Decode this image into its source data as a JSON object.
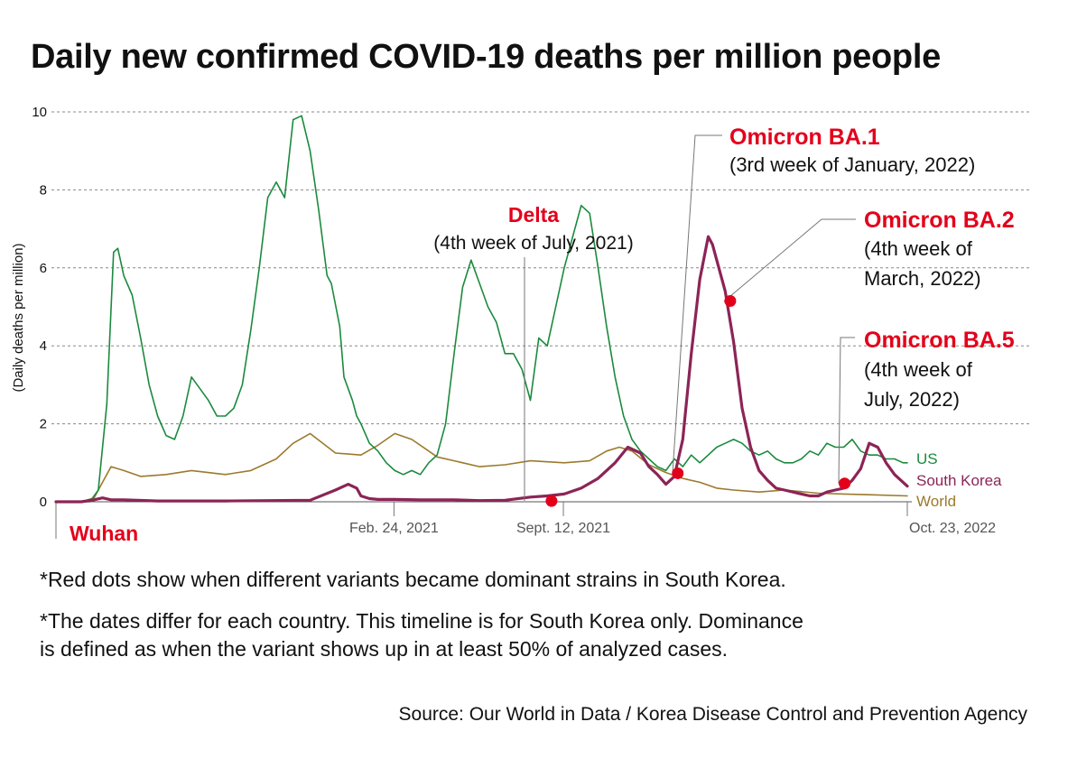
{
  "title": "Daily new confirmed COVID-19 deaths per million people",
  "notes": [
    "*Red dots show when different variants became dominant strains in South Korea.",
    "*The dates differ for each country. This timeline is for South Korea only. Dominance",
    "is defined as when the variant shows up in at least 50% of analyzed cases."
  ],
  "source": "Source: Our World in Data / Korea Disease Control and Prevention Agency",
  "colors": {
    "us": "#1b8a3e",
    "south_korea": "#8c2456",
    "world": "#9c7a2c",
    "marker": "#e3001b",
    "grid": "#888888"
  },
  "chart_data": {
    "type": "line",
    "title": "Daily new confirmed COVID-19 deaths per million people",
    "ylabel": "(Daily deaths per million)",
    "xlabel": "",
    "ylim": [
      0,
      10
    ],
    "yticks": [
      "0",
      "2",
      "4",
      "6",
      "8",
      "10"
    ],
    "xlim": [
      -20,
      1000
    ],
    "x_unit": "days since Jan. 22, 2020",
    "xticks": [
      {
        "x": 0,
        "label": "Wuhan"
      },
      {
        "x": 399,
        "label": "Feb. 24, 2021"
      },
      {
        "x": 599,
        "label": "Sept. 12, 2021"
      },
      {
        "x": 1005,
        "label": "Oct. 23, 2022"
      }
    ],
    "legend": [
      {
        "key": "us",
        "label": "US"
      },
      {
        "key": "south_korea",
        "label": "South Korea"
      },
      {
        "key": "world",
        "label": "World"
      }
    ],
    "series": [
      {
        "name": "US",
        "key": "us",
        "x": [
          0,
          40,
          50,
          60,
          68,
          73,
          80,
          90,
          100,
          110,
          120,
          130,
          140,
          150,
          160,
          170,
          180,
          190,
          200,
          210,
          220,
          230,
          240,
          250,
          260,
          270,
          280,
          290,
          300,
          310,
          320,
          325,
          335,
          340,
          350,
          355,
          360,
          370,
          380,
          390,
          400,
          410,
          420,
          430,
          440,
          450,
          460,
          470,
          480,
          490,
          500,
          510,
          520,
          530,
          540,
          550,
          560,
          570,
          580,
          590,
          600,
          610,
          620,
          630,
          640,
          650,
          660,
          670,
          680,
          690,
          700,
          710,
          720,
          730,
          740,
          750,
          760,
          770,
          780,
          790,
          800,
          810,
          820,
          830,
          840,
          850,
          860,
          870,
          880,
          890,
          900,
          910,
          920,
          930,
          940,
          950,
          960,
          970,
          980,
          990,
          1000,
          1005
        ],
        "values": [
          0,
          0,
          0.3,
          2.5,
          6.4,
          6.5,
          5.8,
          5.3,
          4.2,
          3.0,
          2.2,
          1.7,
          1.6,
          2.2,
          3.2,
          2.9,
          2.6,
          2.2,
          2.2,
          2.4,
          3.0,
          4.4,
          6.0,
          7.8,
          8.2,
          7.8,
          9.8,
          9.9,
          9.0,
          7.5,
          5.8,
          5.6,
          4.5,
          3.2,
          2.6,
          2.2,
          2.0,
          1.5,
          1.3,
          1.0,
          0.8,
          0.7,
          0.8,
          0.7,
          1.0,
          1.2,
          2.0,
          3.8,
          5.5,
          6.2,
          5.6,
          5.0,
          4.6,
          3.8,
          3.8,
          3.4,
          2.6,
          4.2,
          4.0,
          5.0,
          6.0,
          6.8,
          7.6,
          7.4,
          6.0,
          4.5,
          3.2,
          2.2,
          1.6,
          1.3,
          1.1,
          0.9,
          0.8,
          1.1,
          0.9,
          1.2,
          1.0,
          1.2,
          1.4,
          1.5,
          1.6,
          1.5,
          1.3,
          1.2,
          1.3,
          1.1,
          1.0,
          1.0,
          1.1,
          1.3,
          1.2,
          1.5,
          1.4,
          1.4,
          1.6,
          1.3,
          1.2,
          1.2,
          1.1,
          1.1,
          1.0,
          1.0
        ]
      },
      {
        "name": "South Korea",
        "key": "south_korea",
        "x": [
          0,
          30,
          45,
          55,
          65,
          80,
          120,
          200,
          300,
          330,
          345,
          355,
          360,
          370,
          380,
          400,
          430,
          470,
          500,
          530,
          560,
          580,
          600,
          620,
          640,
          660,
          675,
          690,
          700,
          710,
          720,
          730,
          740,
          750,
          760,
          770,
          775,
          780,
          790,
          800,
          810,
          820,
          830,
          840,
          850,
          860,
          870,
          880,
          890,
          900,
          910,
          920,
          930,
          940,
          950,
          960,
          970,
          980,
          990,
          1000,
          1005
        ],
        "values": [
          0,
          0,
          0.05,
          0.1,
          0.05,
          0.05,
          0.02,
          0.02,
          0.04,
          0.3,
          0.45,
          0.35,
          0.15,
          0.08,
          0.06,
          0.06,
          0.05,
          0.05,
          0.03,
          0.04,
          0.12,
          0.15,
          0.2,
          0.35,
          0.6,
          1.0,
          1.4,
          1.25,
          0.9,
          0.7,
          0.45,
          0.65,
          1.6,
          3.8,
          5.7,
          6.8,
          6.6,
          6.2,
          5.4,
          4.1,
          2.4,
          1.4,
          0.8,
          0.55,
          0.35,
          0.3,
          0.25,
          0.2,
          0.15,
          0.15,
          0.25,
          0.3,
          0.35,
          0.55,
          0.85,
          1.5,
          1.4,
          1.0,
          0.7,
          0.5,
          0.4
        ]
      },
      {
        "name": "World",
        "key": "world",
        "x": [
          0,
          30,
          45,
          55,
          65,
          80,
          100,
          130,
          160,
          200,
          230,
          260,
          280,
          300,
          330,
          360,
          380,
          400,
          420,
          440,
          450,
          470,
          500,
          530,
          560,
          600,
          630,
          650,
          665,
          680,
          700,
          720,
          740,
          760,
          780,
          800,
          830,
          860,
          900,
          930,
          960,
          1005
        ],
        "values": [
          0,
          0,
          0.1,
          0.5,
          0.9,
          0.8,
          0.65,
          0.7,
          0.8,
          0.7,
          0.8,
          1.1,
          1.5,
          1.75,
          1.25,
          1.2,
          1.45,
          1.75,
          1.6,
          1.3,
          1.15,
          1.05,
          0.9,
          0.95,
          1.05,
          1.0,
          1.05,
          1.3,
          1.4,
          1.3,
          0.95,
          0.75,
          0.6,
          0.5,
          0.35,
          0.3,
          0.25,
          0.3,
          0.22,
          0.2,
          0.18,
          0.15
        ]
      }
    ],
    "markers": [
      {
        "x": 585,
        "y": 0.02,
        "label": "Delta",
        "note": "(4th week of July, 2021)"
      },
      {
        "x": 734,
        "y": 0.73,
        "label": "Omicron BA.1",
        "note": "(3rd week of January, 2022)"
      },
      {
        "x": 796,
        "y": 5.15,
        "label": "Omicron BA.2",
        "note_lines": [
          "(4th week of",
          "March, 2022)"
        ]
      },
      {
        "x": 931,
        "y": 0.47,
        "label": "Omicron BA.5",
        "note_lines": [
          "(4th week of",
          "July, 2022)"
        ]
      }
    ]
  }
}
